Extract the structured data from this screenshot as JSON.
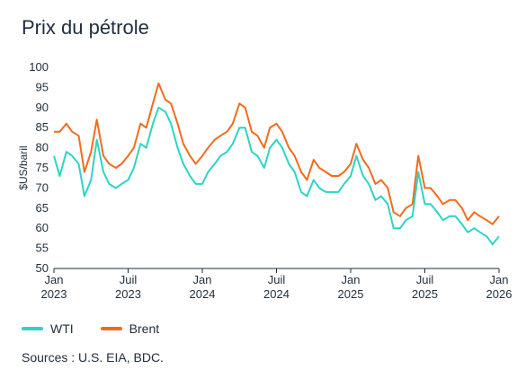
{
  "title": "Prix du pétrole",
  "source": "Sources : U.S. EIA, BDC.",
  "colors": {
    "WTI": "#2dd4c4",
    "Brent": "#f26b1d"
  },
  "chart_data": {
    "type": "line",
    "ylabel": "$US/baril",
    "ylim": [
      50,
      100
    ],
    "yticks": [
      50,
      55,
      60,
      65,
      70,
      75,
      80,
      85,
      90,
      95,
      100
    ],
    "xlim": [
      "2023-01",
      "2026-01"
    ],
    "xticks": [
      {
        "date": "2023-01",
        "label": [
          "Jan",
          "2023"
        ]
      },
      {
        "date": "2023-07",
        "label": [
          "Juil",
          "2023"
        ]
      },
      {
        "date": "2024-01",
        "label": [
          "Jan",
          "2024"
        ]
      },
      {
        "date": "2024-07",
        "label": [
          "Juil",
          "2024"
        ]
      },
      {
        "date": "2025-01",
        "label": [
          "Jan",
          "2025"
        ]
      },
      {
        "date": "2025-07",
        "label": [
          "Juil",
          "2025"
        ]
      },
      {
        "date": "2026-01",
        "label": [
          "Jan",
          "2026"
        ]
      }
    ],
    "grid": false,
    "legend": "bottom-left",
    "series": [
      {
        "name": "WTI",
        "points": [
          [
            "2023-01",
            78
          ],
          [
            "2023-01-15",
            73
          ],
          [
            "2023-02",
            79
          ],
          [
            "2023-02-15",
            78
          ],
          [
            "2023-03",
            76
          ],
          [
            "2023-03-15",
            68
          ],
          [
            "2023-04",
            72
          ],
          [
            "2023-04-15",
            82
          ],
          [
            "2023-05",
            74
          ],
          [
            "2023-05-15",
            71
          ],
          [
            "2023-06",
            70
          ],
          [
            "2023-06-15",
            71
          ],
          [
            "2023-07",
            72
          ],
          [
            "2023-07-15",
            75
          ],
          [
            "2023-08",
            81
          ],
          [
            "2023-08-15",
            80
          ],
          [
            "2023-09",
            86
          ],
          [
            "2023-09-15",
            90
          ],
          [
            "2023-10",
            89
          ],
          [
            "2023-10-15",
            86
          ],
          [
            "2023-11",
            80
          ],
          [
            "2023-11-15",
            76
          ],
          [
            "2023-12",
            73
          ],
          [
            "2023-12-15",
            71
          ],
          [
            "2024-01",
            71
          ],
          [
            "2024-01-15",
            74
          ],
          [
            "2024-02",
            76
          ],
          [
            "2024-02-15",
            78
          ],
          [
            "2024-03",
            79
          ],
          [
            "2024-03-15",
            81
          ],
          [
            "2024-04",
            85
          ],
          [
            "2024-04-15",
            85
          ],
          [
            "2024-05",
            79
          ],
          [
            "2024-05-15",
            78
          ],
          [
            "2024-06",
            75
          ],
          [
            "2024-06-15",
            80
          ],
          [
            "2024-07",
            82
          ],
          [
            "2024-07-15",
            80
          ],
          [
            "2024-08",
            76
          ],
          [
            "2024-08-15",
            74
          ],
          [
            "2024-09",
            69
          ],
          [
            "2024-09-15",
            68
          ],
          [
            "2024-10",
            72
          ],
          [
            "2024-10-15",
            70
          ],
          [
            "2024-11",
            69
          ],
          [
            "2024-11-15",
            69
          ],
          [
            "2024-12",
            69
          ],
          [
            "2024-12-15",
            71
          ],
          [
            "2025-01",
            73
          ],
          [
            "2025-01-15",
            78
          ],
          [
            "2025-02",
            73
          ],
          [
            "2025-02-15",
            71
          ],
          [
            "2025-03",
            67
          ],
          [
            "2025-03-15",
            68
          ],
          [
            "2025-04",
            66
          ],
          [
            "2025-04-15",
            60
          ],
          [
            "2025-05",
            60
          ],
          [
            "2025-05-15",
            62
          ],
          [
            "2025-06",
            63
          ],
          [
            "2025-06-15",
            74
          ],
          [
            "2025-07",
            66
          ],
          [
            "2025-07-15",
            66
          ],
          [
            "2025-08",
            64
          ],
          [
            "2025-08-15",
            62
          ],
          [
            "2025-09",
            63
          ],
          [
            "2025-09-15",
            63
          ],
          [
            "2025-10",
            61
          ],
          [
            "2025-10-15",
            59
          ],
          [
            "2025-11",
            60
          ],
          [
            "2025-11-15",
            59
          ],
          [
            "2025-12",
            58
          ],
          [
            "2025-12-15",
            56
          ],
          [
            "2026-01",
            58
          ]
        ]
      },
      {
        "name": "Brent",
        "points": [
          [
            "2023-01",
            84
          ],
          [
            "2023-01-15",
            84
          ],
          [
            "2023-02",
            86
          ],
          [
            "2023-02-15",
            84
          ],
          [
            "2023-03",
            83
          ],
          [
            "2023-03-15",
            74
          ],
          [
            "2023-04",
            79
          ],
          [
            "2023-04-15",
            87
          ],
          [
            "2023-05",
            78
          ],
          [
            "2023-05-15",
            76
          ],
          [
            "2023-06",
            75
          ],
          [
            "2023-06-15",
            76
          ],
          [
            "2023-07",
            78
          ],
          [
            "2023-07-15",
            80
          ],
          [
            "2023-08",
            86
          ],
          [
            "2023-08-15",
            85
          ],
          [
            "2023-09",
            91
          ],
          [
            "2023-09-15",
            96
          ],
          [
            "2023-10",
            92
          ],
          [
            "2023-10-15",
            91
          ],
          [
            "2023-11",
            86
          ],
          [
            "2023-11-15",
            81
          ],
          [
            "2023-12",
            78
          ],
          [
            "2023-12-15",
            76
          ],
          [
            "2024-01",
            78
          ],
          [
            "2024-01-15",
            80
          ],
          [
            "2024-02",
            82
          ],
          [
            "2024-02-15",
            83
          ],
          [
            "2024-03",
            84
          ],
          [
            "2024-03-15",
            86
          ],
          [
            "2024-04",
            91
          ],
          [
            "2024-04-15",
            90
          ],
          [
            "2024-05",
            84
          ],
          [
            "2024-05-15",
            83
          ],
          [
            "2024-06",
            80
          ],
          [
            "2024-06-15",
            85
          ],
          [
            "2024-07",
            86
          ],
          [
            "2024-07-15",
            84
          ],
          [
            "2024-08",
            80
          ],
          [
            "2024-08-15",
            78
          ],
          [
            "2024-09",
            74
          ],
          [
            "2024-09-15",
            72
          ],
          [
            "2024-10",
            77
          ],
          [
            "2024-10-15",
            75
          ],
          [
            "2024-11",
            74
          ],
          [
            "2024-11-15",
            73
          ],
          [
            "2024-12",
            73
          ],
          [
            "2024-12-15",
            74
          ],
          [
            "2025-01",
            76
          ],
          [
            "2025-01-15",
            81
          ],
          [
            "2025-02",
            77
          ],
          [
            "2025-02-15",
            75
          ],
          [
            "2025-03",
            71
          ],
          [
            "2025-03-15",
            72
          ],
          [
            "2025-04",
            70
          ],
          [
            "2025-04-15",
            64
          ],
          [
            "2025-05",
            63
          ],
          [
            "2025-05-15",
            65
          ],
          [
            "2025-06",
            66
          ],
          [
            "2025-06-15",
            78
          ],
          [
            "2025-07",
            70
          ],
          [
            "2025-07-15",
            70
          ],
          [
            "2025-08",
            68
          ],
          [
            "2025-08-15",
            66
          ],
          [
            "2025-09",
            67
          ],
          [
            "2025-09-15",
            67
          ],
          [
            "2025-10",
            65
          ],
          [
            "2025-10-15",
            62
          ],
          [
            "2025-11",
            64
          ],
          [
            "2025-11-15",
            63
          ],
          [
            "2025-12",
            62
          ],
          [
            "2025-12-15",
            61
          ],
          [
            "2026-01",
            63
          ]
        ]
      }
    ]
  }
}
